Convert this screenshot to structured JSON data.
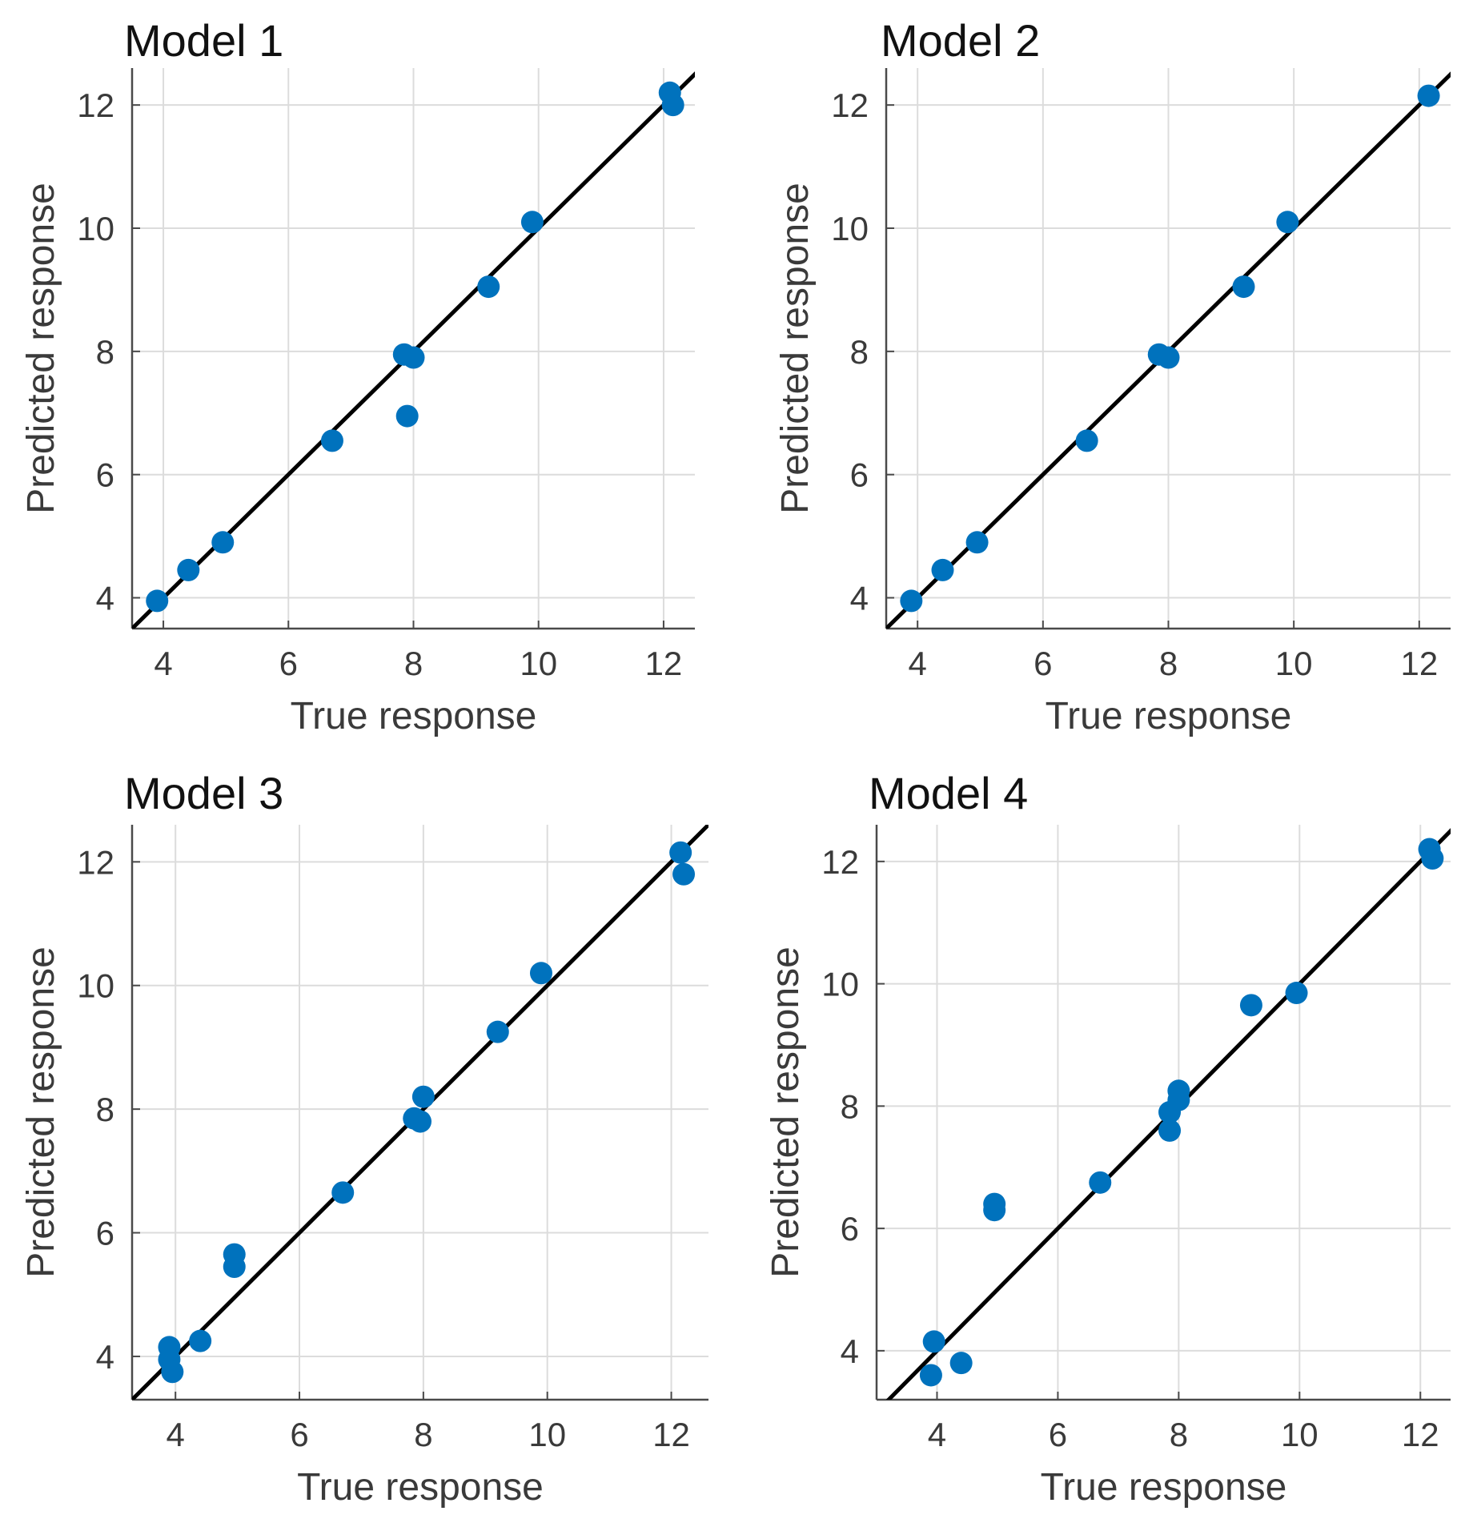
{
  "figure": {
    "marker_color": "#0072BD",
    "line_color": "#000000",
    "grid_color": "#dcdcdc"
  },
  "chart_data": [
    {
      "type": "scatter",
      "title": "Model 1",
      "xlabel": "True response",
      "ylabel": "Predicted response",
      "xlim": [
        3.5,
        12.5
      ],
      "ylim": [
        3.5,
        12.6
      ],
      "xticks": [
        4,
        6,
        8,
        10,
        12
      ],
      "yticks": [
        4,
        6,
        8,
        10,
        12
      ],
      "grid": true,
      "reference_line": "y = x",
      "x": [
        3.9,
        4.4,
        4.95,
        6.7,
        7.85,
        8.0,
        7.9,
        9.2,
        9.9,
        12.1,
        12.15
      ],
      "y": [
        3.95,
        4.45,
        4.9,
        6.55,
        7.95,
        7.9,
        6.95,
        9.05,
        10.1,
        12.2,
        12.0
      ]
    },
    {
      "type": "scatter",
      "title": "Model 2",
      "xlabel": "True response",
      "ylabel": "Predicted response",
      "xlim": [
        3.5,
        12.5
      ],
      "ylim": [
        3.5,
        12.6
      ],
      "xticks": [
        4,
        6,
        8,
        10,
        12
      ],
      "yticks": [
        4,
        6,
        8,
        10,
        12
      ],
      "grid": true,
      "reference_line": "y = x",
      "x": [
        3.9,
        4.4,
        4.95,
        6.7,
        7.85,
        8.0,
        9.2,
        9.9,
        12.15
      ],
      "y": [
        3.95,
        4.45,
        4.9,
        6.55,
        7.95,
        7.9,
        9.05,
        10.1,
        12.15
      ]
    },
    {
      "type": "scatter",
      "title": "Model 3",
      "xlabel": "True response",
      "ylabel": "Predicted response",
      "xlim": [
        3.3,
        12.6
      ],
      "ylim": [
        3.3,
        12.6
      ],
      "xticks": [
        4,
        6,
        8,
        10,
        12
      ],
      "yticks": [
        4,
        6,
        8,
        10,
        12
      ],
      "grid": true,
      "reference_line": "y = x",
      "x": [
        3.9,
        3.9,
        3.95,
        4.4,
        4.95,
        4.95,
        6.7,
        7.85,
        8.0,
        7.95,
        9.2,
        9.9,
        12.15,
        12.2
      ],
      "y": [
        4.15,
        3.95,
        3.75,
        4.25,
        5.65,
        5.45,
        6.65,
        7.85,
        8.2,
        7.8,
        9.25,
        10.2,
        12.15,
        11.8
      ]
    },
    {
      "type": "scatter",
      "title": "Model 4",
      "xlabel": "True response",
      "ylabel": "Predicted response",
      "xlim": [
        3.0,
        12.5
      ],
      "ylim": [
        3.2,
        12.6
      ],
      "xticks": [
        4,
        6,
        8,
        10,
        12
      ],
      "yticks": [
        4,
        6,
        8,
        10,
        12
      ],
      "grid": true,
      "reference_line": "y = x",
      "x": [
        3.95,
        3.9,
        4.4,
        4.95,
        4.95,
        6.7,
        7.85,
        7.85,
        8.0,
        8.0,
        9.2,
        9.95,
        12.15,
        12.2
      ],
      "y": [
        4.15,
        3.6,
        3.8,
        6.4,
        6.3,
        6.75,
        7.9,
        7.6,
        8.1,
        8.25,
        9.65,
        9.85,
        12.2,
        12.05
      ]
    }
  ]
}
